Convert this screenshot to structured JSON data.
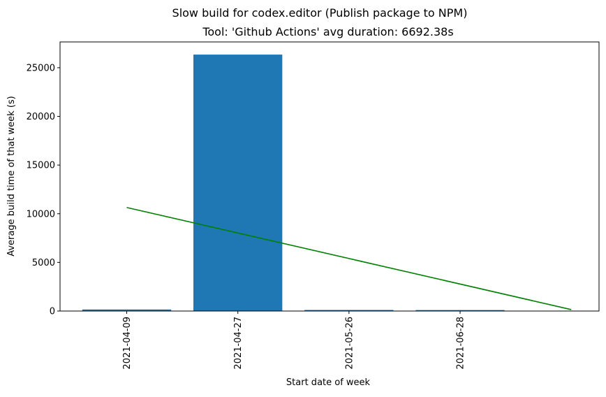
{
  "chart_data": {
    "type": "bar",
    "suptitle": "Slow build for codex.editor (Publish package to NPM)",
    "title": "Tool: 'Github Actions' avg duration: 6692.38s",
    "xlabel": "Start date of week",
    "ylabel": "Average build time of that week (s)",
    "categories": [
      "2021-04-09",
      "2021-04-27",
      "2021-05-26",
      "2021-06-28"
    ],
    "values": [
      160,
      26350,
      110,
      100
    ],
    "bar_color": "#1f77b4",
    "yticks": [
      0,
      5000,
      10000,
      15000,
      20000,
      25000
    ],
    "ylim": [
      0,
      27650
    ],
    "trend_line": {
      "color": "#008000",
      "y_start": 10640,
      "y_end": 150
    },
    "grid": false,
    "legend": "none"
  }
}
